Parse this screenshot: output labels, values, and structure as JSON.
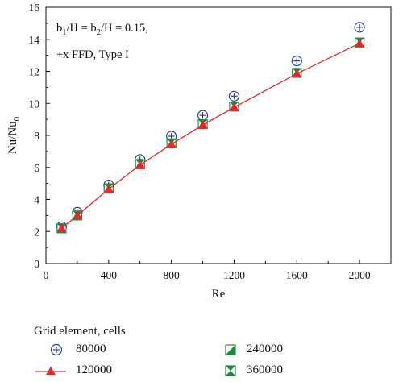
{
  "chart_data": {
    "type": "line",
    "xlabel": "Re",
    "ylabel": "Nu/Nu",
    "ylabel_sub": "0",
    "xlim": [
      0,
      2200
    ],
    "ylim": [
      0,
      16
    ],
    "xticks": [
      0,
      400,
      800,
      1200,
      1600,
      2000
    ],
    "yticks": [
      0,
      2,
      4,
      6,
      8,
      10,
      12,
      14,
      16
    ],
    "annotation": {
      "line1_a": "b",
      "line1_sub1": "1",
      "line1_b": "/H = b",
      "line1_sub2": "2",
      "line1_c": "/H = 0.15,",
      "line2": "+x FFD, Type I"
    },
    "x": [
      100,
      200,
      400,
      600,
      800,
      1000,
      1200,
      1600,
      2000
    ],
    "series": [
      {
        "name": "80000",
        "marker": "circle-plus",
        "color": "#2b3f9a",
        "values": [
          2.3,
          3.2,
          4.9,
          6.5,
          7.95,
          9.25,
          10.45,
          12.65,
          14.75
        ]
      },
      {
        "name": "120000",
        "marker": "triangle-line",
        "color": "#e8262b",
        "values": [
          2.2,
          3.0,
          4.65,
          6.15,
          7.45,
          8.65,
          9.75,
          11.85,
          13.75
        ]
      },
      {
        "name": "240000",
        "marker": "square-half",
        "color": "#1f8a3a",
        "values": [
          2.2,
          3.0,
          4.7,
          6.2,
          7.5,
          8.7,
          9.8,
          11.9,
          13.8
        ]
      },
      {
        "name": "360000",
        "marker": "square-bowtie",
        "color": "#1f8a3a",
        "values": [
          2.2,
          3.0,
          4.7,
          6.2,
          7.5,
          8.7,
          9.8,
          11.9,
          13.8
        ]
      }
    ],
    "legend": {
      "title": "Grid element, cells",
      "placement": "bottom"
    }
  }
}
